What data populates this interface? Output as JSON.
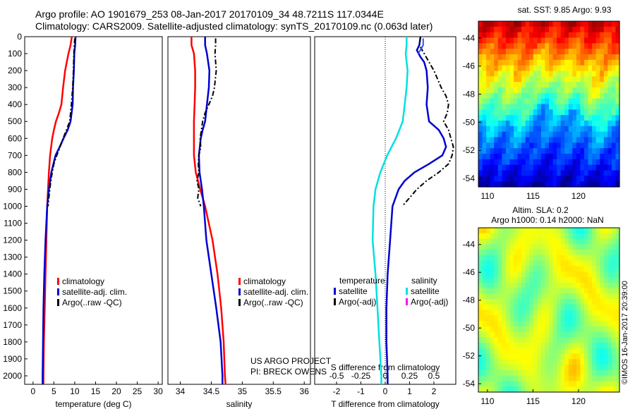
{
  "header": {
    "line1": "Argo profile: AO 1901679_253 08-Jan-2017 20170109_34 48.7211S 117.0344E",
    "line2": "Climatology: CARS2009. Satellite-adjusted climatology: synTS_20170109.nc (0.063d later)"
  },
  "sst_map_title": "sat. SST: 9.85 Argo: 9.93",
  "sla_map_title_1": "Altim. SLA: 0.2",
  "sla_map_title_2": "Argo h1000: 0.14 h2000: NaN",
  "credit": "©IMOS 16-Jan-2017 20:39:00",
  "project": [
    "US ARGO PROJECT",
    "PI: BRECK OWENS"
  ],
  "colors": {
    "climatology": "#ff0000",
    "satellite": "#0000d0",
    "argo": "#000000",
    "satellite_salinity": "#00e0e0",
    "argo_salinity": "#ff00ff"
  },
  "chart_data": [
    {
      "type": "line",
      "xlabel": "temperature (deg C)",
      "ylabel": "",
      "xlim": [
        -2,
        31
      ],
      "ylim": [
        2050,
        0
      ],
      "xticks": [
        0,
        5,
        10,
        15,
        20,
        25,
        30
      ],
      "yticks": [
        0,
        100,
        200,
        300,
        400,
        500,
        600,
        700,
        800,
        900,
        1000,
        1100,
        1200,
        1300,
        1400,
        1500,
        1600,
        1700,
        1800,
        1900,
        2000
      ],
      "legend": [
        "climatology",
        "satellite-adj. clim.",
        "Argo(..raw -QC)"
      ],
      "series": [
        {
          "name": "climatology",
          "y": [
            0,
            50,
            100,
            200,
            300,
            400,
            450,
            500,
            550,
            600,
            700,
            800,
            900,
            1000,
            1200,
            1400,
            1600,
            1800,
            2000,
            2050
          ],
          "x": [
            9.3,
            9.0,
            8.5,
            7.7,
            7.2,
            6.8,
            6.2,
            5.5,
            5.0,
            4.6,
            4.1,
            3.8,
            3.6,
            3.4,
            3.2,
            3.0,
            2.8,
            2.6,
            2.5,
            2.5
          ]
        },
        {
          "name": "satellite-adj. clim.",
          "y": [
            0,
            50,
            100,
            200,
            300,
            400,
            500,
            550,
            600,
            650,
            700,
            800,
            900,
            1000,
            1200,
            1400,
            1600,
            1800,
            2000,
            2050
          ],
          "x": [
            10.2,
            10.1,
            9.9,
            9.8,
            9.6,
            9.5,
            9.0,
            8.3,
            7.3,
            6.4,
            5.4,
            4.4,
            3.8,
            3.4,
            3.0,
            2.7,
            2.5,
            2.4,
            2.3,
            2.3
          ]
        },
        {
          "name": "Argo(..raw -QC)",
          "y": [
            10,
            50,
            100,
            200,
            300,
            400,
            500,
            550,
            600,
            650,
            700,
            750,
            800,
            850,
            900,
            950,
            1000
          ],
          "x": [
            10.0,
            9.9,
            9.8,
            9.7,
            9.5,
            9.2,
            8.8,
            8.0,
            7.2,
            6.5,
            5.7,
            5.0,
            4.6,
            4.3,
            4.0,
            3.8,
            3.6
          ]
        }
      ]
    },
    {
      "type": "line",
      "xlabel": "salinity",
      "ylabel": "",
      "xlim": [
        33.8,
        36.1
      ],
      "ylim": [
        2050,
        0
      ],
      "xticks": [
        34,
        34.5,
        35,
        35.5,
        36
      ],
      "legend": [
        "climatology",
        "satellite-adj. clim.",
        "Argo(..raw -QC)"
      ],
      "series": [
        {
          "name": "climatology",
          "y": [
            0,
            50,
            100,
            200,
            300,
            400,
            500,
            600,
            700,
            800,
            900,
            1000,
            1200,
            1400,
            1600,
            1800,
            2000,
            2050
          ],
          "x": [
            34.18,
            34.18,
            34.22,
            34.24,
            34.24,
            34.23,
            34.22,
            34.22,
            34.22,
            34.25,
            34.32,
            34.4,
            34.52,
            34.6,
            34.66,
            34.7,
            34.72,
            34.73
          ]
        },
        {
          "name": "satellite-adj. clim.",
          "y": [
            0,
            50,
            100,
            200,
            300,
            400,
            500,
            550,
            600,
            700,
            800,
            900,
            1000,
            1200,
            1400,
            1600,
            1800,
            2000,
            2050
          ],
          "x": [
            34.4,
            34.4,
            34.43,
            34.47,
            34.46,
            34.43,
            34.4,
            34.36,
            34.33,
            34.3,
            34.31,
            34.35,
            34.38,
            34.42,
            34.5,
            34.58,
            34.65,
            34.68,
            34.68
          ]
        },
        {
          "name": "Argo(..raw -QC)",
          "y": [
            10,
            50,
            100,
            200,
            300,
            350,
            400,
            450,
            500,
            550,
            600,
            650,
            700,
            750,
            800,
            850,
            900,
            950,
            1000
          ],
          "x": [
            34.57,
            34.57,
            34.56,
            34.58,
            34.55,
            34.52,
            34.46,
            34.4,
            34.36,
            34.34,
            34.32,
            34.33,
            34.3,
            34.29,
            34.3,
            34.27,
            34.3,
            34.28,
            34.33
          ]
        }
      ]
    },
    {
      "type": "line",
      "xlabel": "T difference from climatology",
      "ylabel": "",
      "xlim": [
        -2.9,
        2.9
      ],
      "ylim": [
        2050,
        0
      ],
      "xticks": [
        -2,
        -1,
        0,
        1,
        2
      ],
      "secondary_axis": {
        "label": "S difference from climatology",
        "ticks": [
          -0.5,
          -0.25,
          0,
          0.25,
          0.5
        ],
        "tick_labels": [
          "-0.5",
          "-0.25",
          "0",
          "0.25",
          "0.5"
        ],
        "xlim": [
          -0.725,
          0.725
        ]
      },
      "legend": {
        "temperature": [
          "satellite",
          "Argo(-adj)"
        ],
        "salinity": [
          "satellite",
          "Argo(-adj)"
        ]
      },
      "series": [
        {
          "name": "temperature satellite",
          "y": [
            0,
            50,
            80,
            120,
            150,
            200,
            300,
            400,
            500,
            550,
            600,
            650,
            700,
            750,
            800,
            850,
            900,
            1000,
            1200,
            1400,
            1600,
            1800,
            2000,
            2050
          ],
          "x": [
            1.45,
            1.4,
            1.3,
            1.45,
            1.6,
            1.7,
            1.75,
            1.7,
            1.8,
            2.2,
            2.4,
            2.5,
            2.35,
            1.8,
            1.2,
            0.8,
            0.55,
            0.3,
            0.2,
            0.1,
            0.05,
            0.05,
            0.1,
            0.1
          ]
        },
        {
          "name": "temperature Argo(-adj)",
          "y": [
            0,
            50,
            100,
            150,
            200,
            300,
            350,
            400,
            450,
            500,
            550,
            600,
            650,
            700,
            750,
            800,
            850,
            900,
            950,
            1000
          ],
          "x": [
            1.45,
            1.4,
            1.6,
            1.8,
            2.0,
            2.3,
            2.5,
            2.6,
            2.55,
            2.4,
            2.6,
            2.7,
            2.8,
            2.75,
            2.6,
            2.2,
            1.7,
            1.3,
            1.0,
            0.7
          ]
        },
        {
          "name": "salinity satellite",
          "y": [
            0,
            50,
            100,
            200,
            300,
            400,
            500,
            600,
            700,
            800,
            900,
            1000,
            1200,
            1400,
            1600,
            1800,
            2000,
            2050
          ],
          "x": [
            0.22,
            0.22,
            0.21,
            0.23,
            0.22,
            0.2,
            0.18,
            0.11,
            0.02,
            -0.05,
            -0.1,
            -0.12,
            -0.13,
            -0.1,
            -0.08,
            -0.06,
            -0.04,
            -0.04
          ]
        },
        {
          "name": "salinity Argo(-adj)",
          "y": [
            10,
            50,
            100
          ],
          "x": [
            0.39,
            0.39,
            0.34
          ]
        }
      ]
    },
    {
      "type": "heatmap",
      "title": "sat. SST: 9.85 Argo: 9.93",
      "xlabel": "",
      "ylabel": "",
      "xlim": [
        109,
        124.5
      ],
      "ylim": [
        -54.6,
        -42.8
      ],
      "xticks": [
        110,
        115,
        120
      ],
      "yticks": [
        -44,
        -46,
        -48,
        -50,
        -52,
        -54
      ],
      "colormap": "jet"
    },
    {
      "type": "heatmap",
      "title": "Altim. SLA: 0.2 / Argo h1000: 0.14 h2000: NaN",
      "xlabel": "",
      "ylabel": "",
      "xlim": [
        109,
        124.5
      ],
      "ylim": [
        -54.6,
        -42.8
      ],
      "xticks": [
        110,
        115,
        120
      ],
      "yticks": [
        -44,
        -46,
        -48,
        -50,
        -52,
        -54
      ],
      "colormap": "jet"
    }
  ]
}
